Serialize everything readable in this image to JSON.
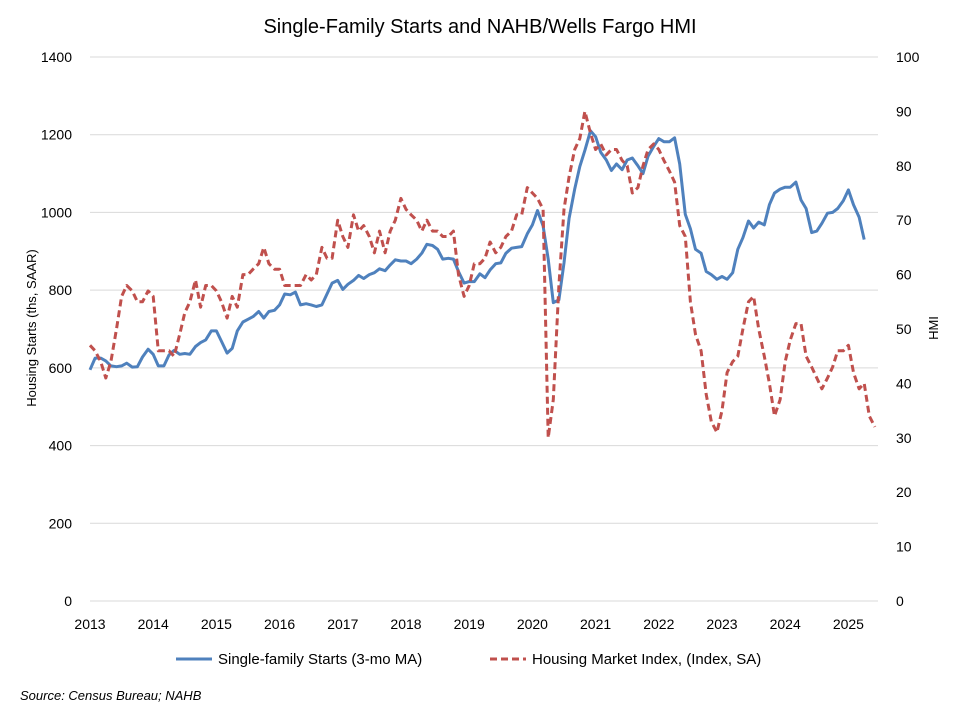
{
  "chart_data": {
    "type": "line",
    "title": "Single-Family Starts and NAHB/Wells Fargo HMI",
    "y_left_label": "Housing Starts (ths, SAAR)",
    "y_right_label": "HMI",
    "y_left_ticks": [
      "0",
      "200",
      "400",
      "600",
      "800",
      "1000",
      "1200",
      "1400"
    ],
    "y_right_ticks": [
      "0",
      "10",
      "20",
      "30",
      "40",
      "50",
      "60",
      "70",
      "80",
      "90",
      "100"
    ],
    "x_ticks": [
      "2013",
      "2014",
      "2015",
      "2016",
      "2017",
      "2018",
      "2019",
      "2020",
      "2021",
      "2022",
      "2023",
      "2024",
      "2025"
    ],
    "y_left_lim": [
      0,
      1400
    ],
    "y_right_lim": [
      0,
      100
    ],
    "grid": "horizontal",
    "legend_position": "bottom",
    "series": [
      {
        "name": "Single-family Starts (3-mo MA)",
        "axis": "left",
        "color": "#4f81bd",
        "style": "solid",
        "points": [
          [
            2013.0,
            595
          ],
          [
            2013.08,
            625
          ],
          [
            2013.17,
            625
          ],
          [
            2013.25,
            618
          ],
          [
            2013.33,
            605
          ],
          [
            2013.42,
            603
          ],
          [
            2013.5,
            605
          ],
          [
            2013.58,
            612
          ],
          [
            2013.67,
            602
          ],
          [
            2013.75,
            603
          ],
          [
            2013.83,
            628
          ],
          [
            2013.92,
            648
          ],
          [
            2014.0,
            635
          ],
          [
            2014.08,
            605
          ],
          [
            2014.17,
            605
          ],
          [
            2014.25,
            633
          ],
          [
            2014.33,
            645
          ],
          [
            2014.42,
            635
          ],
          [
            2014.5,
            637
          ],
          [
            2014.58,
            635
          ],
          [
            2014.67,
            655
          ],
          [
            2014.75,
            665
          ],
          [
            2014.83,
            672
          ],
          [
            2014.92,
            695
          ],
          [
            2015.0,
            695
          ],
          [
            2015.08,
            668
          ],
          [
            2015.17,
            638
          ],
          [
            2015.25,
            650
          ],
          [
            2015.33,
            695
          ],
          [
            2015.42,
            718
          ],
          [
            2015.5,
            725
          ],
          [
            2015.58,
            732
          ],
          [
            2015.67,
            745
          ],
          [
            2015.75,
            728
          ],
          [
            2015.83,
            745
          ],
          [
            2015.92,
            748
          ],
          [
            2016.0,
            762
          ],
          [
            2016.08,
            790
          ],
          [
            2016.17,
            788
          ],
          [
            2016.25,
            795
          ],
          [
            2016.33,
            762
          ],
          [
            2016.42,
            765
          ],
          [
            2016.5,
            762
          ],
          [
            2016.58,
            758
          ],
          [
            2016.67,
            762
          ],
          [
            2016.75,
            790
          ],
          [
            2016.83,
            818
          ],
          [
            2016.92,
            825
          ],
          [
            2017.0,
            802
          ],
          [
            2017.08,
            815
          ],
          [
            2017.17,
            825
          ],
          [
            2017.25,
            838
          ],
          [
            2017.33,
            830
          ],
          [
            2017.42,
            840
          ],
          [
            2017.5,
            845
          ],
          [
            2017.58,
            855
          ],
          [
            2017.67,
            850
          ],
          [
            2017.75,
            865
          ],
          [
            2017.83,
            878
          ],
          [
            2017.92,
            875
          ],
          [
            2018.0,
            875
          ],
          [
            2018.08,
            868
          ],
          [
            2018.17,
            880
          ],
          [
            2018.25,
            895
          ],
          [
            2018.33,
            918
          ],
          [
            2018.42,
            915
          ],
          [
            2018.5,
            905
          ],
          [
            2018.58,
            880
          ],
          [
            2018.67,
            882
          ],
          [
            2018.75,
            880
          ],
          [
            2018.83,
            848
          ],
          [
            2018.92,
            818
          ],
          [
            2019.0,
            822
          ],
          [
            2019.08,
            822
          ],
          [
            2019.17,
            842
          ],
          [
            2019.25,
            832
          ],
          [
            2019.33,
            852
          ],
          [
            2019.42,
            868
          ],
          [
            2019.5,
            870
          ],
          [
            2019.58,
            895
          ],
          [
            2019.67,
            908
          ],
          [
            2019.75,
            910
          ],
          [
            2019.83,
            912
          ],
          [
            2019.92,
            945
          ],
          [
            2020.0,
            968
          ],
          [
            2020.08,
            1005
          ],
          [
            2020.17,
            965
          ],
          [
            2020.25,
            880
          ],
          [
            2020.33,
            768
          ],
          [
            2020.42,
            775
          ],
          [
            2020.5,
            870
          ],
          [
            2020.58,
            985
          ],
          [
            2020.67,
            1060
          ],
          [
            2020.75,
            1118
          ],
          [
            2020.83,
            1160
          ],
          [
            2020.92,
            1210
          ],
          [
            2021.0,
            1195
          ],
          [
            2021.08,
            1155
          ],
          [
            2021.17,
            1135
          ],
          [
            2021.25,
            1108
          ],
          [
            2021.33,
            1125
          ],
          [
            2021.42,
            1110
          ],
          [
            2021.5,
            1135
          ],
          [
            2021.58,
            1140
          ],
          [
            2021.67,
            1120
          ],
          [
            2021.75,
            1100
          ],
          [
            2021.83,
            1145
          ],
          [
            2021.92,
            1170
          ],
          [
            2022.0,
            1190
          ],
          [
            2022.08,
            1182
          ],
          [
            2022.17,
            1182
          ],
          [
            2022.25,
            1192
          ],
          [
            2022.33,
            1125
          ],
          [
            2022.42,
            995
          ],
          [
            2022.5,
            958
          ],
          [
            2022.58,
            905
          ],
          [
            2022.67,
            895
          ],
          [
            2022.75,
            848
          ],
          [
            2022.83,
            840
          ],
          [
            2022.92,
            828
          ],
          [
            2023.0,
            835
          ],
          [
            2023.08,
            828
          ],
          [
            2023.17,
            845
          ],
          [
            2023.25,
            905
          ],
          [
            2023.33,
            935
          ],
          [
            2023.42,
            978
          ],
          [
            2023.5,
            960
          ],
          [
            2023.58,
            975
          ],
          [
            2023.67,
            968
          ],
          [
            2023.75,
            1020
          ],
          [
            2023.83,
            1050
          ],
          [
            2023.92,
            1060
          ],
          [
            2024.0,
            1065
          ],
          [
            2024.08,
            1065
          ],
          [
            2024.17,
            1078
          ],
          [
            2024.25,
            1032
          ],
          [
            2024.33,
            1010
          ],
          [
            2024.42,
            948
          ],
          [
            2024.5,
            952
          ],
          [
            2024.58,
            972
          ],
          [
            2024.67,
            998
          ],
          [
            2024.75,
            1000
          ],
          [
            2024.83,
            1010
          ],
          [
            2024.92,
            1030
          ],
          [
            2025.0,
            1058
          ],
          [
            2025.08,
            1020
          ],
          [
            2025.17,
            988
          ],
          [
            2025.25,
            930
          ]
        ]
      },
      {
        "name": "Housing Market Index, (Index, SA)",
        "axis": "right",
        "color": "#c0504d",
        "style": "dashed",
        "points": [
          [
            2013.0,
            47
          ],
          [
            2013.08,
            46
          ],
          [
            2013.17,
            44
          ],
          [
            2013.25,
            41
          ],
          [
            2013.33,
            44
          ],
          [
            2013.42,
            50
          ],
          [
            2013.5,
            56
          ],
          [
            2013.58,
            58
          ],
          [
            2013.67,
            57
          ],
          [
            2013.75,
            55
          ],
          [
            2013.83,
            55
          ],
          [
            2013.92,
            57
          ],
          [
            2014.0,
            56
          ],
          [
            2014.08,
            46
          ],
          [
            2014.17,
            46
          ],
          [
            2014.25,
            46
          ],
          [
            2014.33,
            45
          ],
          [
            2014.42,
            49
          ],
          [
            2014.5,
            53
          ],
          [
            2014.58,
            55
          ],
          [
            2014.67,
            59
          ],
          [
            2014.75,
            54
          ],
          [
            2014.83,
            58
          ],
          [
            2014.92,
            58
          ],
          [
            2015.0,
            57
          ],
          [
            2015.08,
            55
          ],
          [
            2015.17,
            52
          ],
          [
            2015.25,
            56
          ],
          [
            2015.33,
            54
          ],
          [
            2015.42,
            60
          ],
          [
            2015.5,
            60
          ],
          [
            2015.58,
            61
          ],
          [
            2015.67,
            62
          ],
          [
            2015.75,
            65
          ],
          [
            2015.83,
            62
          ],
          [
            2015.92,
            61
          ],
          [
            2016.0,
            61
          ],
          [
            2016.08,
            58
          ],
          [
            2016.17,
            58
          ],
          [
            2016.25,
            58
          ],
          [
            2016.33,
            58
          ],
          [
            2016.42,
            60
          ],
          [
            2016.5,
            59
          ],
          [
            2016.58,
            60
          ],
          [
            2016.67,
            65
          ],
          [
            2016.75,
            63
          ],
          [
            2016.83,
            63
          ],
          [
            2016.92,
            70
          ],
          [
            2017.0,
            67
          ],
          [
            2017.08,
            65
          ],
          [
            2017.17,
            71
          ],
          [
            2017.25,
            68
          ],
          [
            2017.33,
            69
          ],
          [
            2017.42,
            67
          ],
          [
            2017.5,
            64
          ],
          [
            2017.58,
            68
          ],
          [
            2017.67,
            64
          ],
          [
            2017.75,
            68
          ],
          [
            2017.83,
            70
          ],
          [
            2017.92,
            74
          ],
          [
            2018.0,
            72
          ],
          [
            2018.08,
            71
          ],
          [
            2018.17,
            70
          ],
          [
            2018.25,
            68
          ],
          [
            2018.33,
            70
          ],
          [
            2018.42,
            68
          ],
          [
            2018.5,
            68
          ],
          [
            2018.58,
            67
          ],
          [
            2018.67,
            67
          ],
          [
            2018.75,
            68
          ],
          [
            2018.83,
            60
          ],
          [
            2018.92,
            56
          ],
          [
            2019.0,
            58
          ],
          [
            2019.08,
            62
          ],
          [
            2019.17,
            62
          ],
          [
            2019.25,
            63
          ],
          [
            2019.33,
            66
          ],
          [
            2019.42,
            64
          ],
          [
            2019.5,
            65
          ],
          [
            2019.58,
            67
          ],
          [
            2019.67,
            68
          ],
          [
            2019.75,
            71
          ],
          [
            2019.83,
            71
          ],
          [
            2019.92,
            76
          ],
          [
            2020.0,
            75
          ],
          [
            2020.08,
            74
          ],
          [
            2020.17,
            72
          ],
          [
            2020.25,
            30
          ],
          [
            2020.33,
            37
          ],
          [
            2020.42,
            58
          ],
          [
            2020.5,
            72
          ],
          [
            2020.58,
            78
          ],
          [
            2020.67,
            83
          ],
          [
            2020.75,
            85
          ],
          [
            2020.83,
            90
          ],
          [
            2020.92,
            86
          ],
          [
            2021.0,
            83
          ],
          [
            2021.08,
            84
          ],
          [
            2021.17,
            82
          ],
          [
            2021.25,
            83
          ],
          [
            2021.33,
            83
          ],
          [
            2021.42,
            81
          ],
          [
            2021.5,
            80
          ],
          [
            2021.58,
            75
          ],
          [
            2021.67,
            76
          ],
          [
            2021.75,
            80
          ],
          [
            2021.83,
            83
          ],
          [
            2021.92,
            84
          ],
          [
            2022.0,
            83
          ],
          [
            2022.08,
            81
          ],
          [
            2022.17,
            79
          ],
          [
            2022.25,
            77
          ],
          [
            2022.33,
            69
          ],
          [
            2022.42,
            67
          ],
          [
            2022.5,
            55
          ],
          [
            2022.58,
            49
          ],
          [
            2022.67,
            46
          ],
          [
            2022.75,
            38
          ],
          [
            2022.83,
            33
          ],
          [
            2022.92,
            31
          ],
          [
            2023.0,
            35
          ],
          [
            2023.08,
            42
          ],
          [
            2023.17,
            44
          ],
          [
            2023.25,
            45
          ],
          [
            2023.33,
            50
          ],
          [
            2023.42,
            55
          ],
          [
            2023.5,
            56
          ],
          [
            2023.58,
            50
          ],
          [
            2023.67,
            45
          ],
          [
            2023.75,
            40
          ],
          [
            2023.83,
            34
          ],
          [
            2023.92,
            37
          ],
          [
            2024.0,
            44
          ],
          [
            2024.08,
            48
          ],
          [
            2024.17,
            51
          ],
          [
            2024.25,
            51
          ],
          [
            2024.33,
            45
          ],
          [
            2024.42,
            43
          ],
          [
            2024.5,
            41
          ],
          [
            2024.58,
            39
          ],
          [
            2024.67,
            41
          ],
          [
            2024.75,
            43
          ],
          [
            2024.83,
            46
          ],
          [
            2024.92,
            46
          ],
          [
            2025.0,
            47
          ],
          [
            2025.08,
            42
          ],
          [
            2025.17,
            39
          ],
          [
            2025.25,
            40
          ],
          [
            2025.33,
            34
          ],
          [
            2025.42,
            32
          ]
        ]
      }
    ]
  },
  "source": "Source: Census Bureau; NAHB"
}
